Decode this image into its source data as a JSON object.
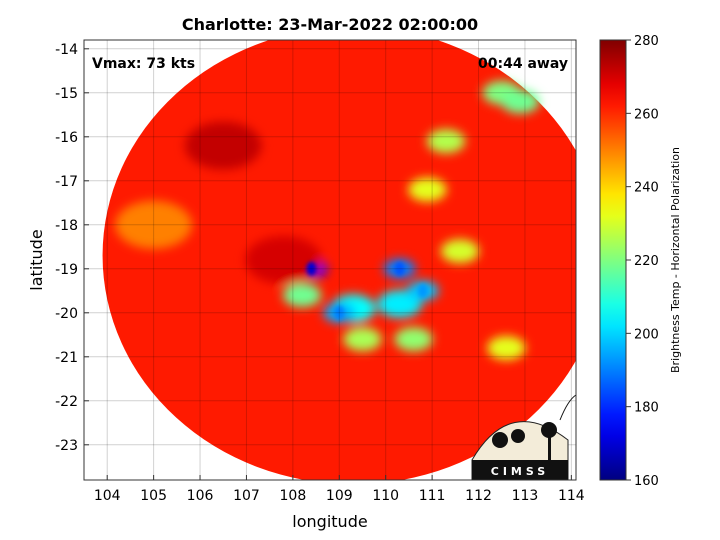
{
  "chart_data": {
    "type": "heatmap",
    "title": "Charlotte: 23-Mar-2022 02:00:00",
    "xlabel": "longitude",
    "ylabel": "latitude",
    "xlim": [
      103.5,
      114.1
    ],
    "ylim": [
      -23.8,
      -13.8
    ],
    "xticks": [
      104,
      105,
      106,
      107,
      108,
      109,
      110,
      111,
      112,
      113,
      114
    ],
    "yticks": [
      -14,
      -15,
      -16,
      -17,
      -18,
      -19,
      -20,
      -21,
      -22,
      -23
    ],
    "grid": true,
    "annotations": {
      "vmax": "Vmax: 73 kts",
      "away": "00:44 away"
    },
    "colorbar": {
      "label": "Brightness Temp - Horizontal Polarization",
      "min": 160,
      "max": 280,
      "ticks": [
        280,
        260,
        240,
        220,
        200,
        180,
        160
      ],
      "colormap": "jet"
    },
    "swath": {
      "center_lon": 109.3,
      "center_lat": -18.7,
      "radius_lon": 5.4,
      "radius_lat": 5.2,
      "background_value": 262
    },
    "features": [
      {
        "lon": 109.3,
        "lat": -19.9,
        "value": 205
      },
      {
        "lon": 110.3,
        "lat": -19.8,
        "value": 203
      },
      {
        "lon": 108.4,
        "lat": -19.0,
        "value": 175
      },
      {
        "lon": 109.0,
        "lat": -20.0,
        "value": 195
      },
      {
        "lon": 110.3,
        "lat": -19.0,
        "value": 190
      },
      {
        "lon": 110.8,
        "lat": -19.5,
        "value": 198
      },
      {
        "lon": 110.6,
        "lat": -20.6,
        "value": 222
      },
      {
        "lon": 109.5,
        "lat": -20.6,
        "value": 225
      },
      {
        "lon": 108.2,
        "lat": -19.6,
        "value": 218
      },
      {
        "lon": 112.5,
        "lat": -15.0,
        "value": 220
      },
      {
        "lon": 112.9,
        "lat": -15.2,
        "value": 218
      },
      {
        "lon": 111.3,
        "lat": -16.1,
        "value": 226
      },
      {
        "lon": 110.9,
        "lat": -17.2,
        "value": 232
      },
      {
        "lon": 111.6,
        "lat": -18.6,
        "value": 230
      },
      {
        "lon": 112.6,
        "lat": -20.8,
        "value": 232
      },
      {
        "lon": 106.5,
        "lat": -16.2,
        "value": 272
      },
      {
        "lon": 107.8,
        "lat": -18.8,
        "value": 270
      },
      {
        "lon": 105.0,
        "lat": -18.0,
        "value": 250
      }
    ],
    "logo": {
      "text": "CIMSS"
    }
  }
}
